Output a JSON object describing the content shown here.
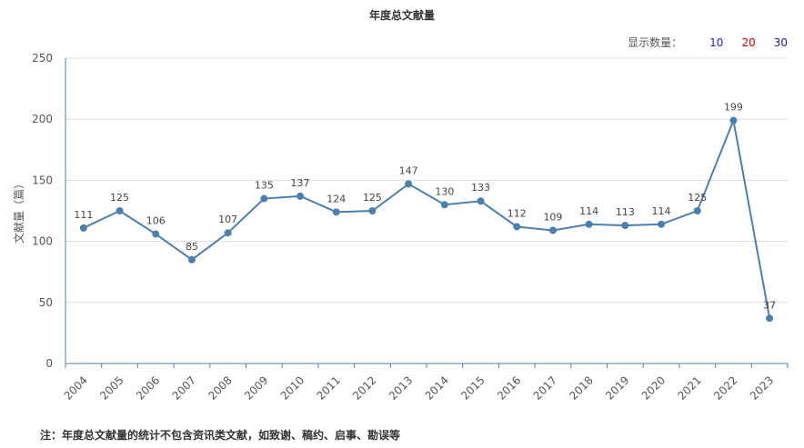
{
  "title": "年度总文献量",
  "controls": {
    "label": "显示数量：",
    "options": [
      {
        "text": "10",
        "color": "#1a1aff"
      },
      {
        "text": "20",
        "color": "#e00000"
      },
      {
        "text": "30",
        "color": "#1a1a8f"
      }
    ]
  },
  "note": "注：年度总文献量的统计不包含资讯类文献，如致谢、稿约、启事、勘误等",
  "chart_data": {
    "type": "line",
    "x": [
      "2004",
      "2005",
      "2006",
      "2007",
      "2008",
      "2009",
      "2010",
      "2011",
      "2012",
      "2013",
      "2014",
      "2015",
      "2016",
      "2017",
      "2018",
      "2019",
      "2020",
      "2021",
      "2022",
      "2023"
    ],
    "series": [
      {
        "values": [
          111,
          125,
          106,
          85,
          107,
          135,
          137,
          124,
          125,
          147,
          130,
          133,
          112,
          109,
          114,
          113,
          114,
          125,
          199,
          37
        ],
        "color": "#4a7fb0"
      }
    ],
    "ylabel": "文献量（篇）",
    "ylim": [
      0,
      250
    ],
    "yticks": [
      0,
      50,
      100,
      150,
      200,
      250
    ],
    "grid": true
  }
}
